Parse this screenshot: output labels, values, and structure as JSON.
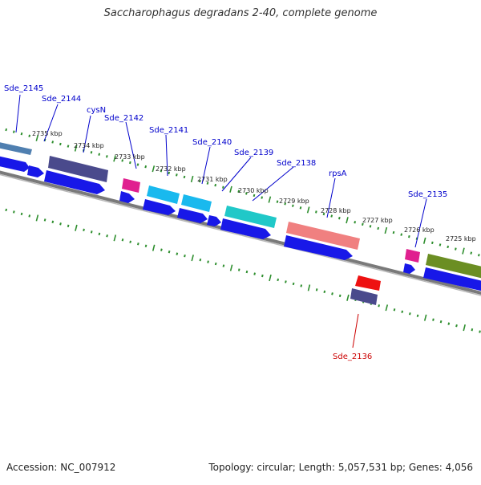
{
  "title": "Saccharophagus degradans 2-40, complete genome",
  "footer": {
    "accession": "Accession: NC_007912",
    "summary": "Topology: circular; Length: 5,057,531 bp; Genes: 4,056"
  },
  "colors": {
    "forward_gene": "#1818e8",
    "tick": "#2f8f2f",
    "backbone": "#7a7a7a",
    "label_blue": "#0000cc",
    "label_red": "#cc0000"
  },
  "kbp_ticks": [
    "2735 kbp",
    "2734 kbp",
    "2733 kbp",
    "2732 kbp",
    "2731 kbp",
    "2730 kbp",
    "2729 kbp",
    "2728 kbp",
    "2727 kbp",
    "2726 kbp",
    "2725 kbp"
  ],
  "gene_labels": [
    "Sde_2145",
    "Sde_2144",
    "cysN",
    "Sde_2142",
    "Sde_2141",
    "Sde_2140",
    "Sde_2139",
    "Sde_2138",
    "rpsA",
    "Sde_2135",
    "Sde_2136"
  ],
  "feature_colors": {
    "steelblue": "#4f7fb0",
    "slateblue": "#4a4a8c",
    "magenta": "#e0208f",
    "cyan": "#19b9ee",
    "teal": "#20c8c8",
    "salmon": "#f08080",
    "red": "#ee1111",
    "olive": "#6b8e23"
  }
}
